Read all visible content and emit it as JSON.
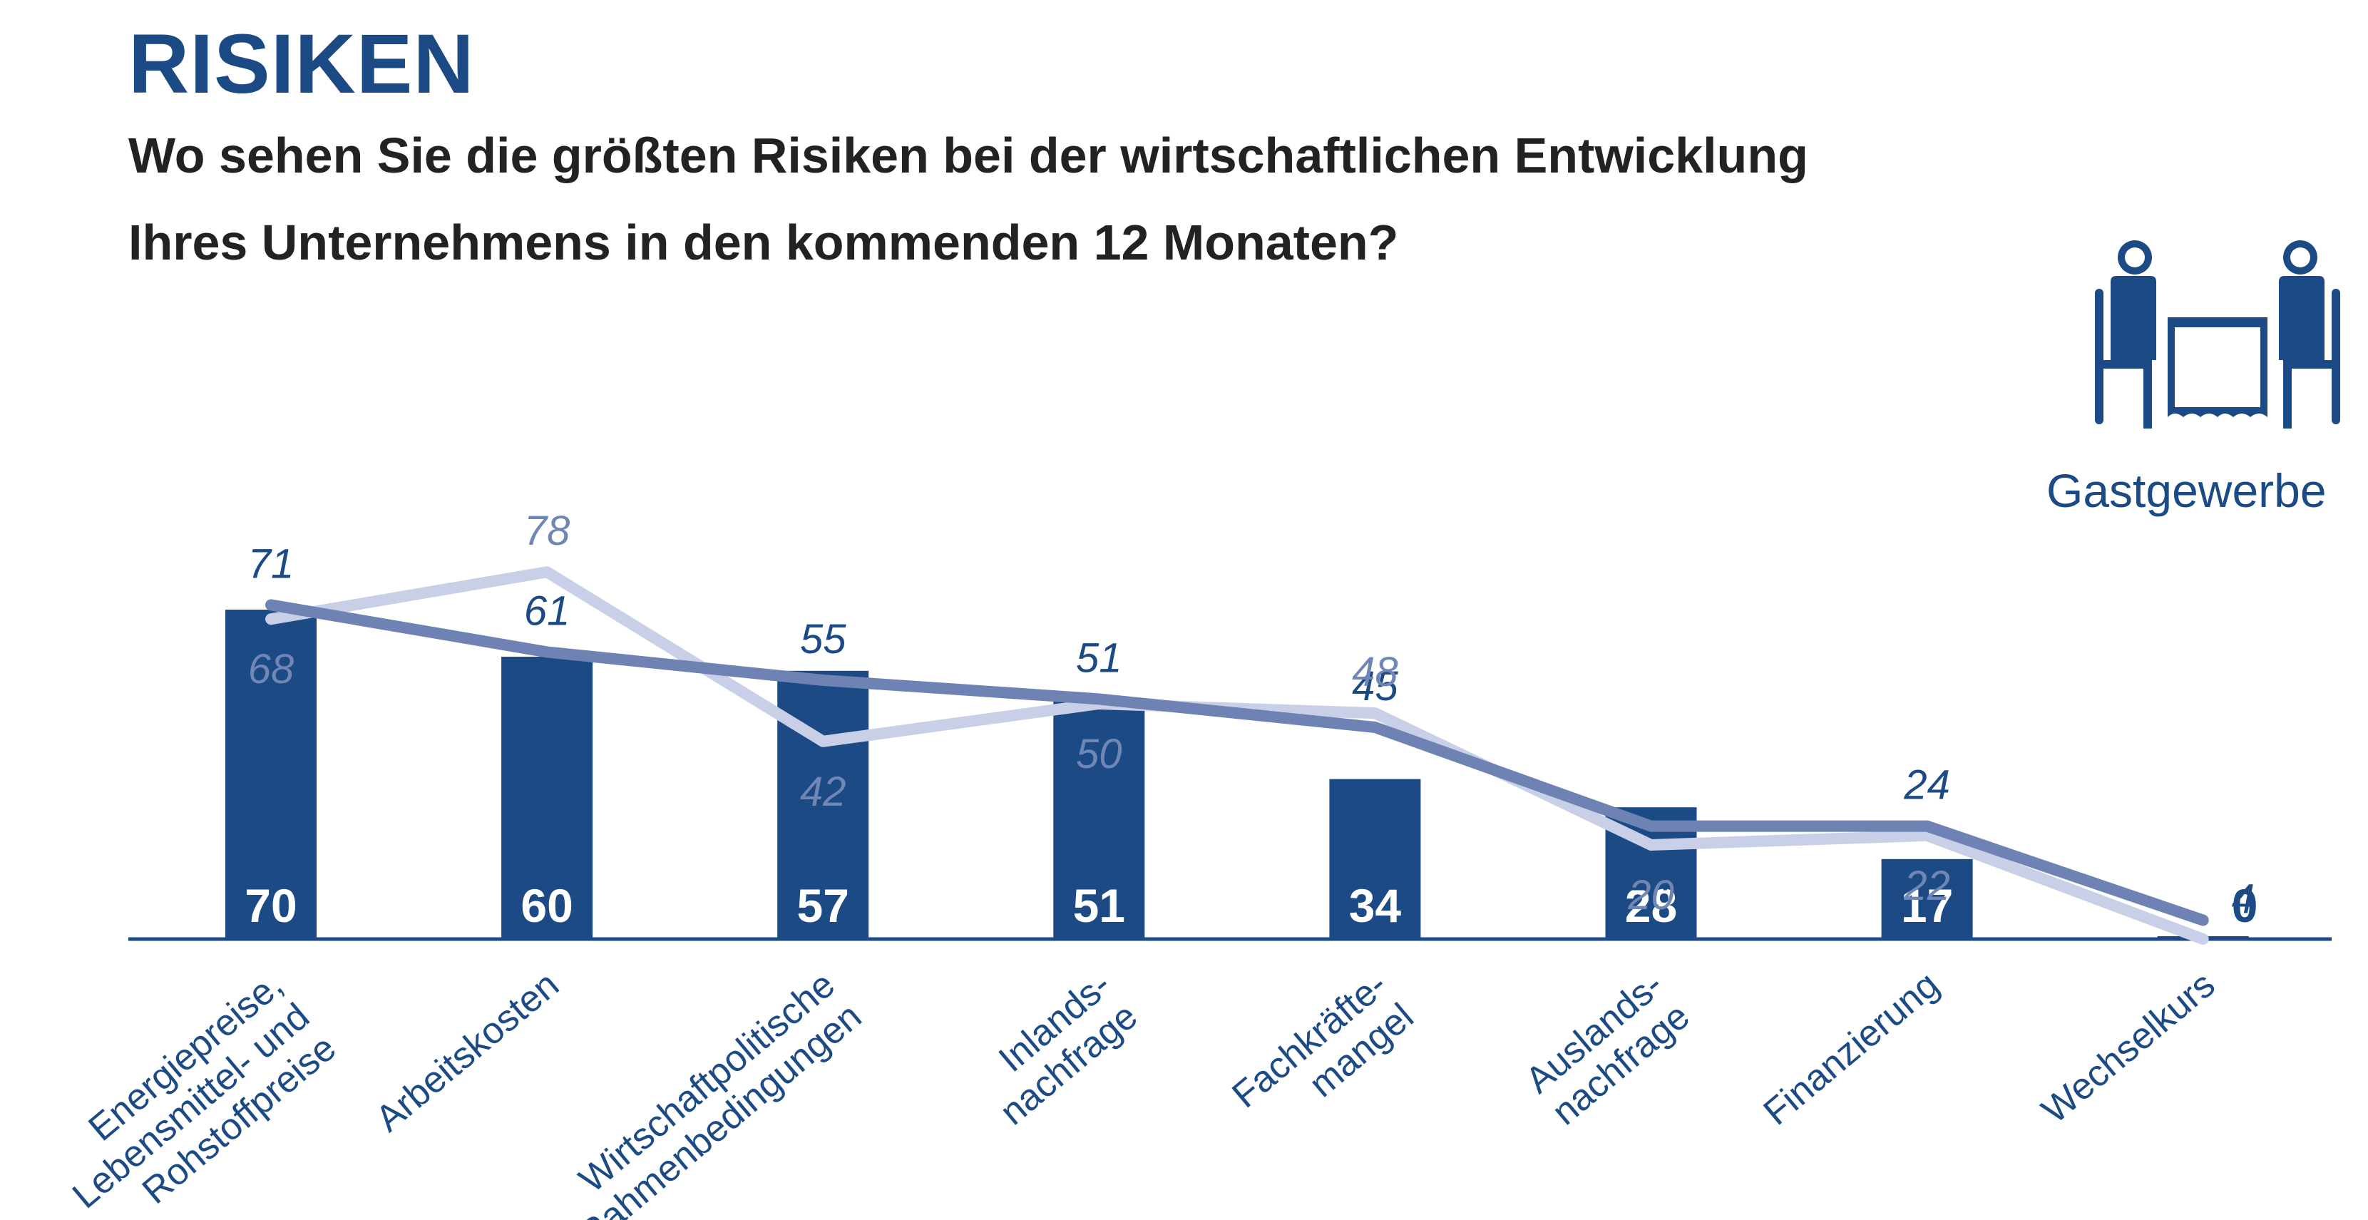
{
  "header": {
    "title": "RISIKEN",
    "question_line1": "Wo sehen Sie die größten Risiken bei der wirtschaftlichen Entwicklung",
    "question_line2": "Ihres Unternehmens in den kommenden 12 Monaten?"
  },
  "legend": {
    "label": "Gastgewerbe",
    "icon": "restaurant-table-icon"
  },
  "colors": {
    "bar": "#1b4a85",
    "line_dark": "#6e82b4",
    "line_light": "#c9cfe6",
    "label_dark": "#1b4a85",
    "label_light": "#7086b5",
    "text": "#222222"
  },
  "chart_data": {
    "type": "bar",
    "categories": [
      [
        "Energiepreise,",
        "Lebensmittel- und",
        "Rohstoffpreise"
      ],
      [
        "Arbeitskosten"
      ],
      [
        "Wirtschaftpolitische",
        "Rahmenbedingungen"
      ],
      [
        "Inlands-",
        "nachfrage"
      ],
      [
        "Fachkräfte-",
        "mangel"
      ],
      [
        "Auslands-",
        "nachfrage"
      ],
      [
        "Finanzierung"
      ],
      [
        "Wechselkurs"
      ]
    ],
    "series": [
      {
        "values": [
          70,
          60,
          57,
          51,
          34,
          28,
          17,
          0
        ]
      },
      {
        "values": [
          71,
          61,
          55,
          51,
          45,
          24,
          24,
          4
        ]
      },
      {
        "values": [
          68,
          78,
          42,
          50,
          48,
          20,
          22,
          0
        ]
      }
    ],
    "ylim": [
      0,
      100
    ],
    "line_label_placement_dark": [
      "above",
      "above",
      "above",
      "above",
      "above",
      "below",
      "above",
      "right"
    ],
    "line_label_placement_light": [
      "below",
      "above",
      "below",
      "below",
      "above",
      "below",
      "below",
      "none"
    ]
  }
}
